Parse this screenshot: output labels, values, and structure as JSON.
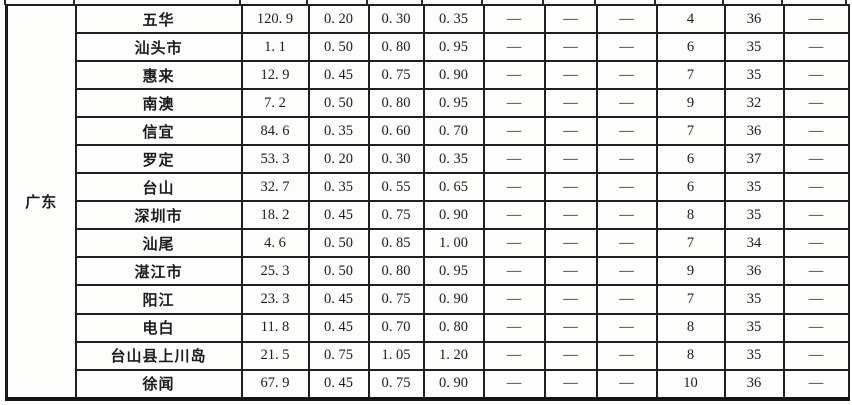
{
  "table": {
    "province": "广东",
    "dash": "—",
    "rows": [
      {
        "city": "五华",
        "values": [
          "120. 9",
          "0. 20",
          "0. 30",
          "0. 35",
          "—",
          "—",
          "—",
          "4",
          "36",
          "—"
        ]
      },
      {
        "city": "汕头市",
        "values": [
          "1. 1",
          "0. 50",
          "0. 80",
          "0. 95",
          "—",
          "—",
          "—",
          "6",
          "35",
          "—"
        ]
      },
      {
        "city": "惠来",
        "values": [
          "12. 9",
          "0. 45",
          "0. 75",
          "0. 90",
          "—",
          "—",
          "—",
          "7",
          "35",
          "—"
        ]
      },
      {
        "city": "南澳",
        "values": [
          "7. 2",
          "0. 50",
          "0. 80",
          "0. 95",
          "—",
          "—",
          "—",
          "9",
          "32",
          "—"
        ]
      },
      {
        "city": "信宜",
        "values": [
          "84. 6",
          "0. 35",
          "0. 60",
          "0. 70",
          "—",
          "—",
          "—",
          "7",
          "36",
          "—"
        ]
      },
      {
        "city": "罗定",
        "values": [
          "53. 3",
          "0. 20",
          "0. 30",
          "0. 35",
          "—",
          "—",
          "—",
          "6",
          "37",
          "—"
        ]
      },
      {
        "city": "台山",
        "values": [
          "32. 7",
          "0. 35",
          "0. 55",
          "0. 65",
          "—",
          "—",
          "—",
          "6",
          "35",
          "—"
        ]
      },
      {
        "city": "深圳市",
        "values": [
          "18. 2",
          "0. 45",
          "0. 75",
          "0. 90",
          "—",
          "—",
          "—",
          "8",
          "35",
          "—"
        ]
      },
      {
        "city": "汕尾",
        "values": [
          "4. 6",
          "0. 50",
          "0. 85",
          "1. 00",
          "—",
          "—",
          "—",
          "7",
          "34",
          "—"
        ]
      },
      {
        "city": "湛江市",
        "values": [
          "25. 3",
          "0. 50",
          "0. 80",
          "0. 95",
          "—",
          "—",
          "—",
          "9",
          "36",
          "—"
        ]
      },
      {
        "city": "阳江",
        "values": [
          "23. 3",
          "0. 45",
          "0. 75",
          "0. 90",
          "—",
          "—",
          "—",
          "7",
          "35",
          "—"
        ]
      },
      {
        "city": "电白",
        "values": [
          "11. 8",
          "0. 45",
          "0. 70",
          "0. 80",
          "—",
          "—",
          "—",
          "8",
          "35",
          "—"
        ]
      },
      {
        "city": "台山县上川岛",
        "values": [
          "21. 5",
          "0. 75",
          "1. 05",
          "1. 20",
          "—",
          "—",
          "—",
          "8",
          "35",
          "—"
        ]
      },
      {
        "city": "徐闻",
        "values": [
          "67. 9",
          "0. 45",
          "0. 75",
          "0. 90",
          "—",
          "—",
          "—",
          "10",
          "36",
          "—"
        ]
      }
    ]
  }
}
